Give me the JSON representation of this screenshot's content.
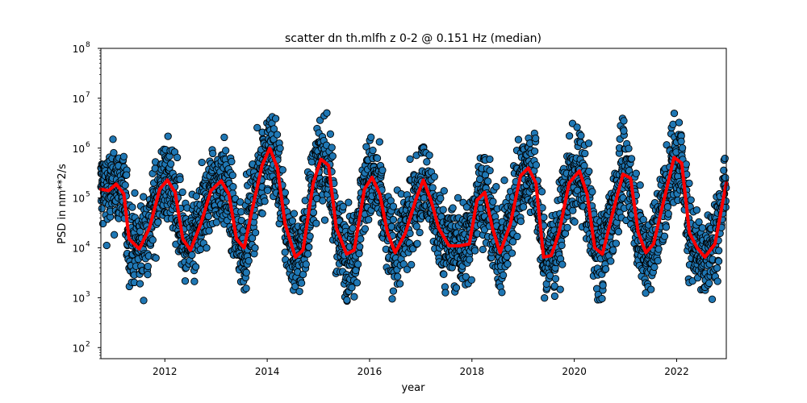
{
  "chart_data": {
    "type": "scatter",
    "title": "scatter dn th.mlfh z 0-2 @ 0.151 Hz (median)",
    "xlabel": "year",
    "ylabel": "PSD in nm**2/s",
    "xlim": [
      2010.75,
      2022.97
    ],
    "ylim": [
      60,
      100000000
    ],
    "yscale": "log",
    "grid": false,
    "x_ticks": [
      2012,
      2014,
      2016,
      2018,
      2020,
      2022
    ],
    "y_ticks": [
      {
        "value": 100,
        "base": "10",
        "exp": "2"
      },
      {
        "value": 1000,
        "base": "10",
        "exp": "3"
      },
      {
        "value": 10000,
        "base": "10",
        "exp": "4"
      },
      {
        "value": 100000,
        "base": "10",
        "exp": "5"
      },
      {
        "value": 1000000,
        "base": "10",
        "exp": "6"
      },
      {
        "value": 10000000,
        "base": "10",
        "exp": "7"
      },
      {
        "value": 100000000,
        "base": "10",
        "exp": "8"
      }
    ],
    "scatter_color": "#1f77b4",
    "median_color": "#ff0000",
    "median_series": {
      "x": [
        2010.75,
        2010.9,
        2011.05,
        2011.2,
        2011.3,
        2011.5,
        2011.7,
        2011.9,
        2012.05,
        2012.2,
        2012.35,
        2012.5,
        2012.7,
        2012.9,
        2013.1,
        2013.25,
        2013.4,
        2013.55,
        2013.7,
        2013.9,
        2014.05,
        2014.2,
        2014.35,
        2014.55,
        2014.7,
        2014.9,
        2015.05,
        2015.2,
        2015.35,
        2015.55,
        2015.7,
        2015.9,
        2016.05,
        2016.2,
        2016.35,
        2016.5,
        2016.7,
        2016.9,
        2017.05,
        2017.2,
        2017.35,
        2017.55,
        2017.75,
        2017.95,
        2018.1,
        2018.25,
        2018.4,
        2018.55,
        2018.75,
        2018.95,
        2019.1,
        2019.25,
        2019.4,
        2019.55,
        2019.7,
        2019.9,
        2020.1,
        2020.25,
        2020.4,
        2020.55,
        2020.75,
        2020.95,
        2021.1,
        2021.25,
        2021.4,
        2021.55,
        2021.75,
        2021.95,
        2022.1,
        2022.25,
        2022.4,
        2022.55,
        2022.75,
        2022.97
      ],
      "y": [
        150000,
        140000,
        190000,
        120000,
        15000,
        9500,
        25000,
        150000,
        230000,
        130000,
        15000,
        9000,
        30000,
        140000,
        220000,
        120000,
        15000,
        10000,
        55000,
        450000,
        1000000,
        400000,
        30000,
        6500,
        9000,
        200000,
        600000,
        450000,
        25000,
        7500,
        9000,
        150000,
        260000,
        120000,
        20000,
        8000,
        20000,
        90000,
        230000,
        90000,
        25000,
        11000,
        11000,
        12000,
        90000,
        130000,
        25000,
        8000,
        30000,
        280000,
        400000,
        200000,
        6500,
        7000,
        20000,
        200000,
        350000,
        120000,
        10000,
        7500,
        50000,
        300000,
        250000,
        20000,
        8000,
        12000,
        90000,
        650000,
        500000,
        20000,
        10000,
        6500,
        12000,
        200000
      ]
    }
  }
}
